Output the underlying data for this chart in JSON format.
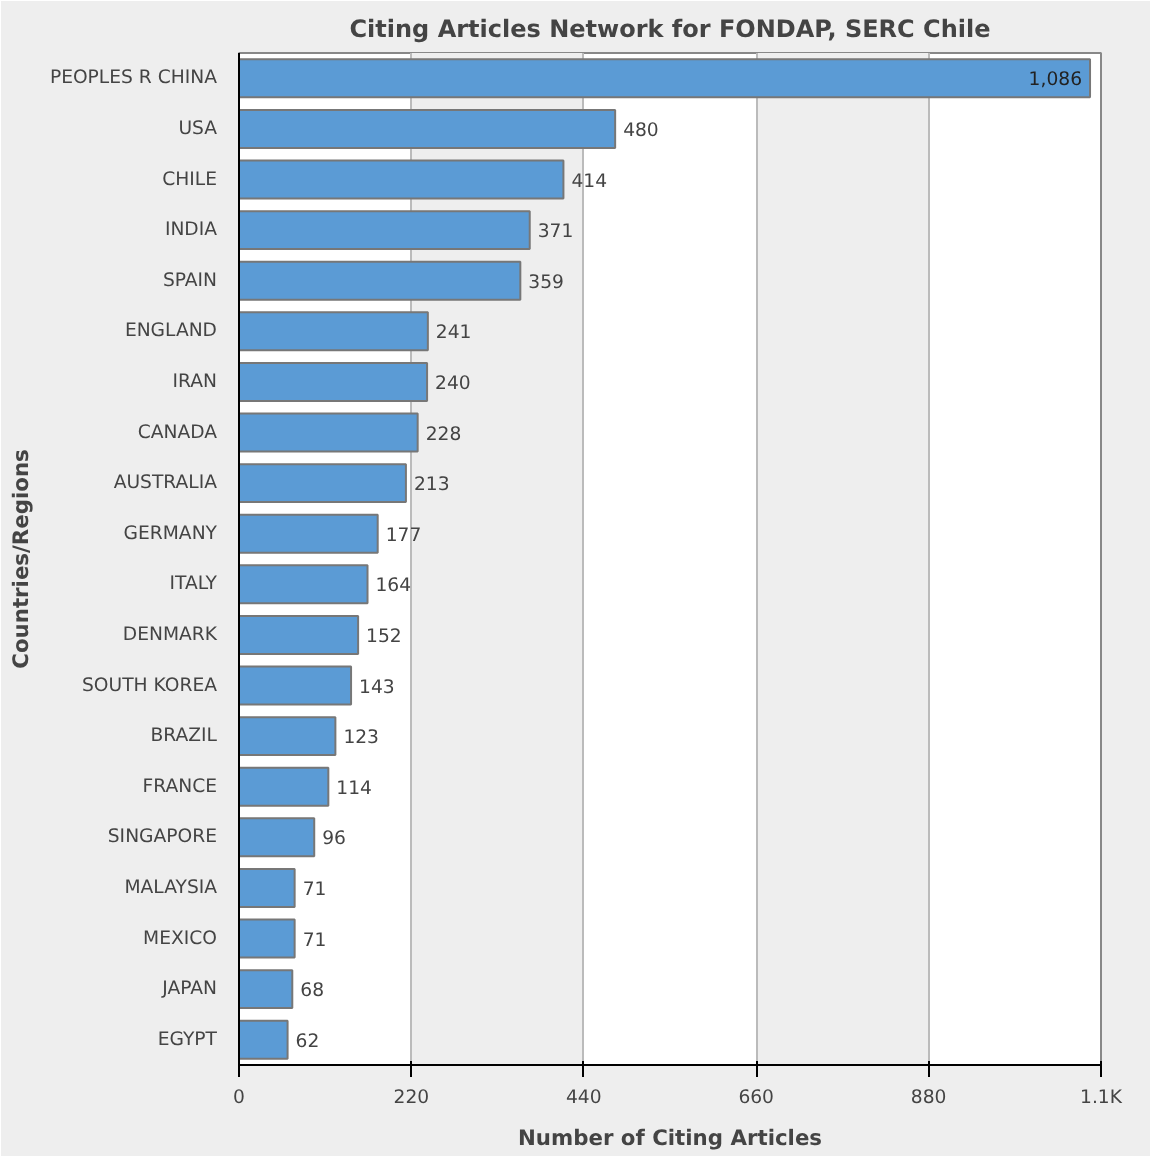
{
  "chart_data": {
    "type": "bar",
    "orientation": "horizontal",
    "title": "Citing Articles Network for FONDAP, SERC Chile",
    "xlabel": "Number of Citing Articles",
    "ylabel": "Countries/Regions",
    "categories": [
      "PEOPLES R CHINA",
      "USA",
      "CHILE",
      "INDIA",
      "SPAIN",
      "ENGLAND",
      "IRAN",
      "CANADA",
      "AUSTRALIA",
      "GERMANY",
      "ITALY",
      "DENMARK",
      "SOUTH KOREA",
      "BRAZIL",
      "FRANCE",
      "SINGAPORE",
      "MALAYSIA",
      "MEXICO",
      "JAPAN",
      "EGYPT"
    ],
    "values": [
      1086,
      480,
      414,
      371,
      359,
      241,
      240,
      228,
      213,
      177,
      164,
      152,
      143,
      123,
      114,
      96,
      71,
      71,
      68,
      62
    ],
    "value_labels": [
      "1,086",
      "480",
      "414",
      "371",
      "359",
      "241",
      "240",
      "228",
      "213",
      "177",
      "164",
      "152",
      "143",
      "123",
      "114",
      "96",
      "71",
      "71",
      "68",
      "62"
    ],
    "color": "#5b9bd5",
    "xlim": [
      0,
      1100
    ],
    "xticks": [
      0,
      220,
      440,
      660,
      880,
      {
        "value": 1100,
        "label": "1.1K"
      }
    ],
    "grid": "x"
  }
}
